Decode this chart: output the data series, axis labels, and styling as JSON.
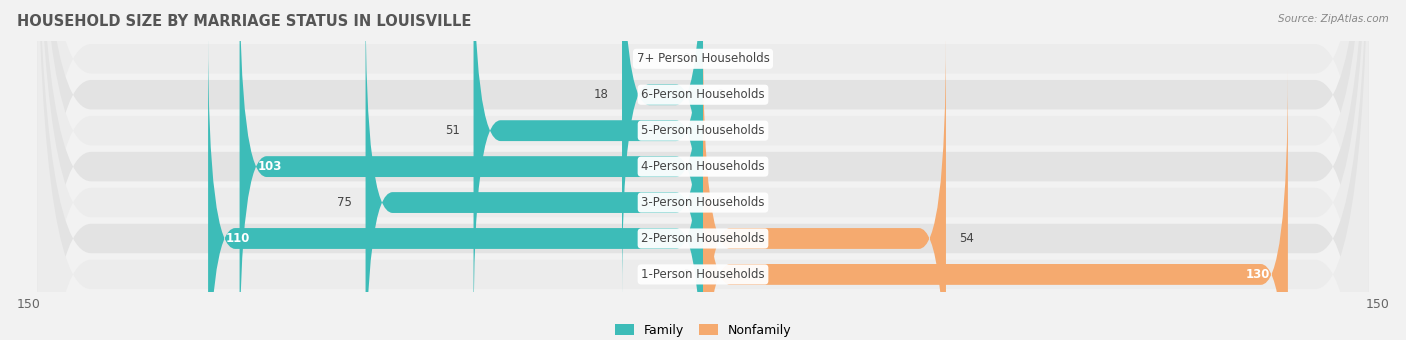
{
  "title": "HOUSEHOLD SIZE BY MARRIAGE STATUS IN LOUISVILLE",
  "source": "Source: ZipAtlas.com",
  "categories": [
    "7+ Person Households",
    "6-Person Households",
    "5-Person Households",
    "4-Person Households",
    "3-Person Households",
    "2-Person Households",
    "1-Person Households"
  ],
  "family_values": [
    0,
    18,
    51,
    103,
    75,
    110,
    0
  ],
  "nonfamily_values": [
    0,
    0,
    0,
    0,
    0,
    54,
    130
  ],
  "family_color": "#3DBCB8",
  "nonfamily_color": "#F5AA6F",
  "axis_limit": 150,
  "bg_color": "#f2f2f2",
  "row_bg_colors": [
    "#ececec",
    "#e3e3e3"
  ],
  "title_fontsize": 10.5,
  "label_fontsize": 8.5,
  "tick_fontsize": 9
}
